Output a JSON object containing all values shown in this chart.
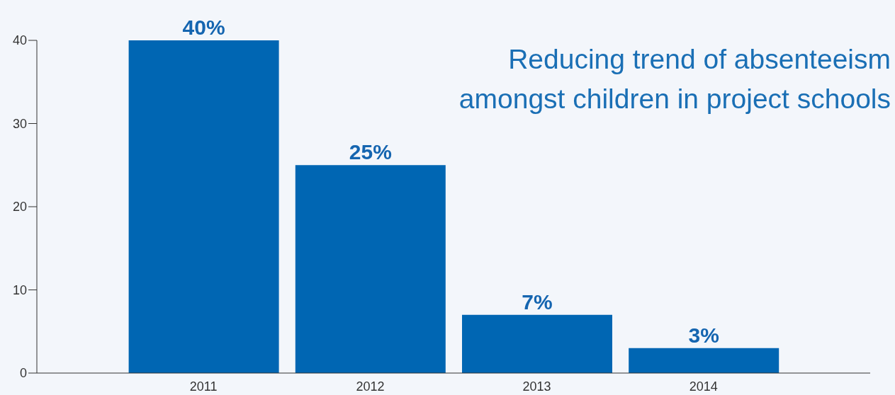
{
  "chart_data": {
    "type": "bar",
    "title": "Reducing trend of absenteeism\namongst children in project schools",
    "categories": [
      "2011",
      "2012",
      "2013",
      "2014"
    ],
    "values": [
      40,
      25,
      7,
      3
    ],
    "value_labels": [
      "40%",
      "25%",
      "7%",
      "3%"
    ],
    "color": "#0066b3",
    "ylim": [
      0,
      40
    ],
    "yticks": [
      0,
      10,
      20,
      30,
      40
    ],
    "grid": false,
    "legend": false
  }
}
